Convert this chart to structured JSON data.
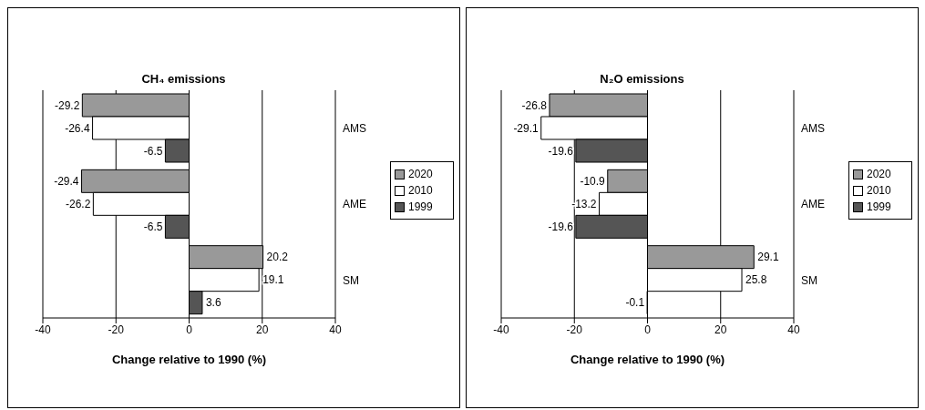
{
  "chart_data": [
    {
      "type": "bar",
      "orientation": "horizontal",
      "title": "CH₄ emissions",
      "xlabel": "Change relative to 1990 (%)",
      "categories": [
        "AMS",
        "AME",
        "SM"
      ],
      "series": [
        {
          "name": "2020",
          "color": "#999999",
          "values": [
            -29.2,
            -29.4,
            20.2
          ]
        },
        {
          "name": "2010",
          "color": "#ffffff",
          "values": [
            -26.4,
            -26.2,
            19.1
          ]
        },
        {
          "name": "1999",
          "color": "#555555",
          "values": [
            -6.5,
            -6.5,
            3.6
          ]
        }
      ],
      "xlim": [
        -40,
        40
      ],
      "xticks": [
        -40,
        -20,
        0,
        20,
        40
      ],
      "grid": "x",
      "legend": "right",
      "data_labels": true
    },
    {
      "type": "bar",
      "orientation": "horizontal",
      "title": "N₂O emissions",
      "xlabel": "Change relative to 1990 (%)",
      "categories": [
        "AMS",
        "AME",
        "SM"
      ],
      "series": [
        {
          "name": "2020",
          "color": "#999999",
          "values": [
            -26.8,
            -10.9,
            29.1
          ]
        },
        {
          "name": "2010",
          "color": "#ffffff",
          "values": [
            -29.1,
            -13.2,
            25.8
          ]
        },
        {
          "name": "1999",
          "color": "#555555",
          "values": [
            -19.6,
            -19.6,
            -0.1
          ]
        }
      ],
      "xlim": [
        -40,
        40
      ],
      "xticks": [
        -40,
        -20,
        0,
        20,
        40
      ],
      "grid": "x",
      "legend": "right",
      "data_labels": true
    }
  ]
}
